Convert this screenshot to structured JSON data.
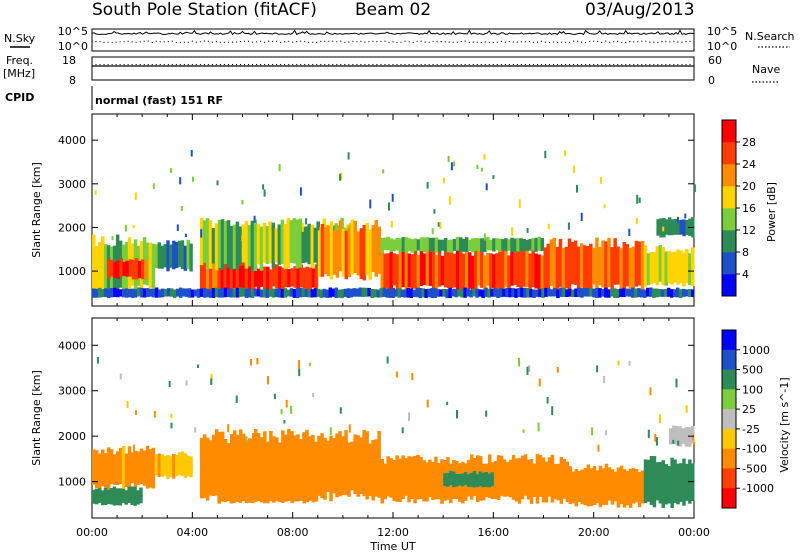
{
  "header": {
    "station": "South Pole Station (fitACF)",
    "beam": "Beam 02",
    "date": "03/Aug/2013"
  },
  "top_panels": {
    "nsky_label": "N.Sky",
    "nsky_ticks": [
      "10^5",
      "10^0"
    ],
    "nsearch_label": "N.Search",
    "nsearch_ticks": [
      "10^5",
      "10^0"
    ],
    "freq_label": "Freq.",
    "freq_unit": "[MHz]",
    "freq_ticks": [
      "18",
      "8"
    ],
    "nave_label": "Nave",
    "nave_ticks": [
      "60",
      "0"
    ],
    "cpid_label": "CPID",
    "cpid_text": "normal (fast) 151 RF"
  },
  "chart_data": [
    {
      "type": "heatmap",
      "title": "",
      "xlabel": "Time UT",
      "ylabel": "Slant Range [km]",
      "x_ticks": [
        "00:00",
        "04:00",
        "08:00",
        "12:00",
        "16:00",
        "20:00",
        "00:00"
      ],
      "y_ticks": [
        1000,
        2000,
        3000,
        4000
      ],
      "xlim_hours": [
        0,
        24
      ],
      "ylim_km": [
        200,
        4600
      ],
      "colorbar_label": "Power [dB]",
      "colorbar_ticks": [
        4,
        8,
        12,
        16,
        20,
        24,
        28
      ],
      "colorbar_colors": [
        "#0000ff",
        "#1e50c8",
        "#2e8b57",
        "#7ccd3c",
        "#ffd400",
        "#ff8c00",
        "#ff3c00",
        "#ff0000"
      ],
      "bands": [
        {
          "t": [
            0.0,
            2.5
          ],
          "r": [
            600,
            1700
          ],
          "value": 14
        },
        {
          "t": [
            0.6,
            2.2
          ],
          "r": [
            850,
            1250
          ],
          "value": 26
        },
        {
          "t": [
            2.5,
            4.0
          ],
          "r": [
            1050,
            1650
          ],
          "value": 10
        },
        {
          "t": [
            4.3,
            6.5
          ],
          "r": [
            550,
            1450
          ],
          "value": 24
        },
        {
          "t": [
            5.0,
            9.0
          ],
          "r": [
            600,
            1100
          ],
          "value": 28
        },
        {
          "t": [
            4.3,
            10.5
          ],
          "r": [
            1100,
            2100
          ],
          "value": 14
        },
        {
          "t": [
            9.0,
            11.5
          ],
          "r": [
            900,
            2050
          ],
          "value": 22
        },
        {
          "t": [
            11.5,
            18.0
          ],
          "r": [
            600,
            1450
          ],
          "value": 26
        },
        {
          "t": [
            11.5,
            18.0
          ],
          "r": [
            1450,
            1750
          ],
          "value": 12
        },
        {
          "t": [
            18.0,
            22.0
          ],
          "r": [
            600,
            1650
          ],
          "value": 24
        },
        {
          "t": [
            22.0,
            24.0
          ],
          "r": [
            700,
            1500
          ],
          "value": 16
        },
        {
          "t": [
            22.5,
            24.0
          ],
          "r": [
            1800,
            2200
          ],
          "value": 8
        },
        {
          "t": [
            0.0,
            24.0
          ],
          "r": [
            400,
            600
          ],
          "value": 6
        }
      ]
    },
    {
      "type": "heatmap",
      "title": "",
      "xlabel": "Time UT",
      "ylabel": "Slant Range [km]",
      "x_ticks": [
        "00:00",
        "04:00",
        "08:00",
        "12:00",
        "16:00",
        "20:00",
        "00:00"
      ],
      "y_ticks": [
        1000,
        2000,
        3000,
        4000
      ],
      "xlim_hours": [
        0,
        24
      ],
      "ylim_km": [
        200,
        4600
      ],
      "colorbar_label": "Velocity [m s^-1]",
      "colorbar_ticks": [
        "1000",
        "500",
        "100",
        "25",
        "-25",
        "-100",
        "-500",
        "-1000"
      ],
      "colorbar_colors": [
        "#0000ff",
        "#1e50c8",
        "#2e8b57",
        "#7ccd3c",
        "#bebebe",
        "#ffc800",
        "#ff8c00",
        "#ff4000",
        "#ff0000"
      ],
      "bands": [
        {
          "t": [
            0.0,
            2.5
          ],
          "r": [
            900,
            1700
          ],
          "value": -150
        },
        {
          "t": [
            0.0,
            2.0
          ],
          "r": [
            500,
            850
          ],
          "value": 200
        },
        {
          "t": [
            2.5,
            4.0
          ],
          "r": [
            1100,
            1600
          ],
          "value": -80
        },
        {
          "t": [
            4.3,
            11.5
          ],
          "r": [
            700,
            2000
          ],
          "value": -200
        },
        {
          "t": [
            5.0,
            9.0
          ],
          "r": [
            550,
            900
          ],
          "value": -250
        },
        {
          "t": [
            11.5,
            19.0
          ],
          "r": [
            600,
            1500
          ],
          "value": -300
        },
        {
          "t": [
            14.0,
            16.0
          ],
          "r": [
            900,
            1200
          ],
          "value": 200
        },
        {
          "t": [
            19.0,
            22.0
          ],
          "r": [
            500,
            1300
          ],
          "value": -150
        },
        {
          "t": [
            22.0,
            24.0
          ],
          "r": [
            500,
            1450
          ],
          "value": 300
        },
        {
          "t": [
            23.0,
            24.0
          ],
          "r": [
            1800,
            2200
          ],
          "value": 0
        }
      ]
    }
  ]
}
